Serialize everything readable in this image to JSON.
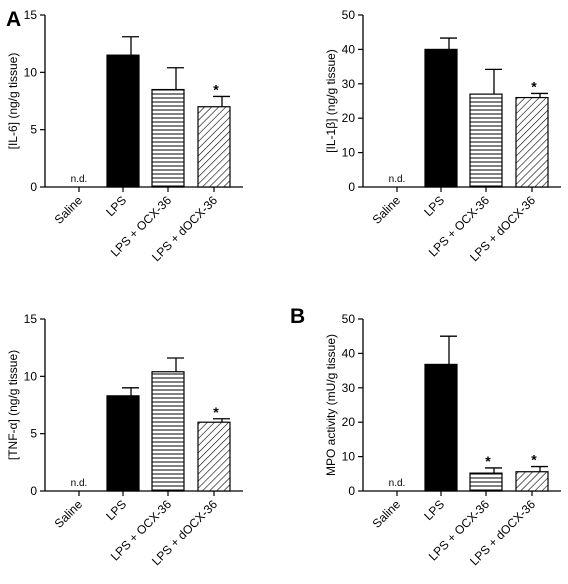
{
  "figure": {
    "panel_letters": [
      "A",
      "B"
    ]
  },
  "chart_data": [
    {
      "type": "bar",
      "panel_label": "A",
      "ylabel": "[IL-6] (ng/g tissue)",
      "ylim": [
        0,
        15
      ],
      "yticks": [
        0,
        5,
        10,
        15
      ],
      "categories": [
        "Saline",
        "LPS",
        "LPS + OCX-36",
        "LPS + dOCX-36"
      ],
      "values": [
        null,
        11.5,
        8.5,
        7.0
      ],
      "errors": [
        null,
        1.6,
        1.9,
        0.9
      ],
      "value_labels": [
        "n.d.",
        "",
        "",
        ""
      ],
      "significance": [
        "",
        "",
        "",
        "*"
      ],
      "fills": [
        "none",
        "solid",
        "horizontal",
        "diagonal"
      ]
    },
    {
      "type": "bar",
      "panel_label": "",
      "ylabel": "[IL-1β] (ng/g tissue)",
      "ylim": [
        0,
        50
      ],
      "yticks": [
        0,
        10,
        20,
        30,
        40,
        50
      ],
      "categories": [
        "Saline",
        "LPS",
        "LPS + OCX-36",
        "LPS + dOCX-36"
      ],
      "values": [
        null,
        40,
        27,
        26
      ],
      "errors": [
        null,
        3.3,
        7.2,
        1.2
      ],
      "value_labels": [
        "n.d.",
        "",
        "",
        ""
      ],
      "significance": [
        "",
        "",
        "",
        "*"
      ],
      "fills": [
        "none",
        "solid",
        "horizontal",
        "diagonal"
      ]
    },
    {
      "type": "bar",
      "panel_label": "",
      "ylabel": "[TNF-α] (ng/g tissue)",
      "ylim": [
        0,
        15
      ],
      "yticks": [
        0,
        5,
        10,
        15
      ],
      "categories": [
        "Saline",
        "LPS",
        "LPS + OCX-36",
        "LPS + dOCX-36"
      ],
      "values": [
        null,
        8.3,
        10.4,
        6.0
      ],
      "errors": [
        null,
        0.7,
        1.2,
        0.3
      ],
      "value_labels": [
        "n.d.",
        "",
        "",
        ""
      ],
      "significance": [
        "",
        "",
        "",
        "*"
      ],
      "fills": [
        "none",
        "solid",
        "horizontal",
        "diagonal"
      ]
    },
    {
      "type": "bar",
      "panel_label": "B",
      "ylabel": "MPO activity (mU/g tissue)",
      "ylim": [
        0,
        50
      ],
      "yticks": [
        0,
        10,
        20,
        30,
        40,
        50
      ],
      "categories": [
        "Saline",
        "LPS",
        "LPS + OCX-36",
        "LPS + dOCX-36"
      ],
      "values": [
        null,
        36.8,
        5.2,
        5.6
      ],
      "errors": [
        null,
        8.2,
        1.5,
        1.5
      ],
      "value_labels": [
        "n.d.",
        "",
        "",
        ""
      ],
      "significance": [
        "",
        "",
        "*",
        "*"
      ],
      "fills": [
        "none",
        "solid",
        "horizontal",
        "diagonal"
      ]
    }
  ]
}
